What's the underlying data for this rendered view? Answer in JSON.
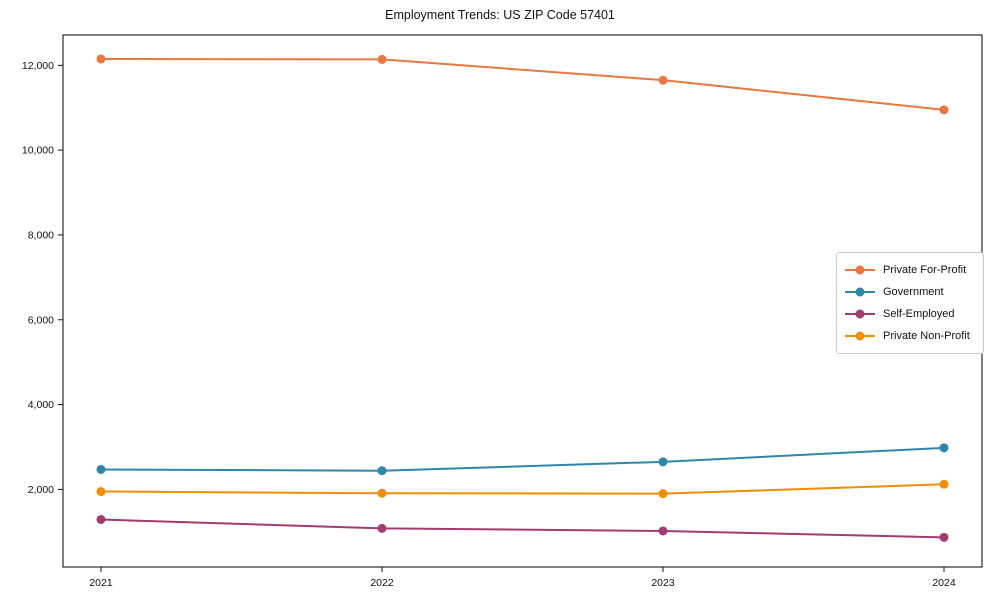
{
  "title": "Employment Trends: US ZIP Code 57401",
  "chart_data": {
    "type": "line",
    "title": "Employment Trends: US ZIP Code 57401",
    "xlabel": "",
    "ylabel": "",
    "x": [
      "2021",
      "2022",
      "2023",
      "2024"
    ],
    "series": [
      {
        "name": "Private For-Profit",
        "color": "#e87840",
        "values": [
          12150,
          12140,
          11650,
          10950
        ]
      },
      {
        "name": "Government",
        "color": "#2e86ab",
        "values": [
          2470,
          2440,
          2650,
          2980
        ]
      },
      {
        "name": "Self-Employed",
        "color": "#a23b72",
        "values": [
          1290,
          1080,
          1020,
          870
        ]
      },
      {
        "name": "Private Non-Profit",
        "color": "#f18f01",
        "values": [
          1950,
          1910,
          1900,
          2120
        ]
      }
    ],
    "y_ticks": [
      2000,
      4000,
      6000,
      8000,
      10000,
      12000
    ],
    "ylim": [
      170,
      12715
    ],
    "grid": false,
    "marker": "circle",
    "legend_position": "center-right",
    "tick_color": "#111111"
  }
}
